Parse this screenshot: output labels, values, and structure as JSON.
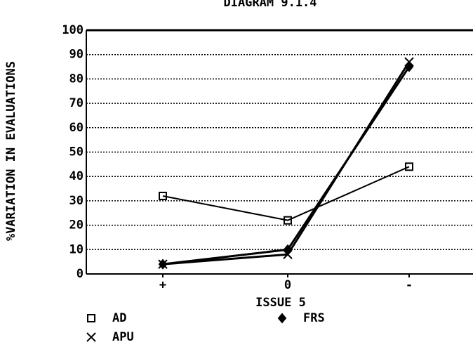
{
  "chart_data": {
    "type": "line",
    "title": "DIAGRAM 9.1.4",
    "x_label": "ISSUE 5",
    "y_label": "%VARIATION IN EVALUATIONS",
    "categories": [
      "+",
      "0",
      "-"
    ],
    "series": [
      {
        "name": "AD",
        "color": "#000000",
        "marker": "square",
        "values": [
          32,
          22,
          44
        ]
      },
      {
        "name": "FRS",
        "color": "#000000",
        "marker": "diamond",
        "values": [
          4,
          10,
          85
        ]
      },
      {
        "name": "APU",
        "color": "#000000",
        "marker": "x",
        "values": [
          4,
          8,
          87
        ]
      }
    ],
    "ylim": [
      0,
      100
    ],
    "yticks": [
      0,
      10,
      20,
      30,
      40,
      50,
      60,
      70,
      80,
      90,
      100
    ],
    "grid": true
  }
}
